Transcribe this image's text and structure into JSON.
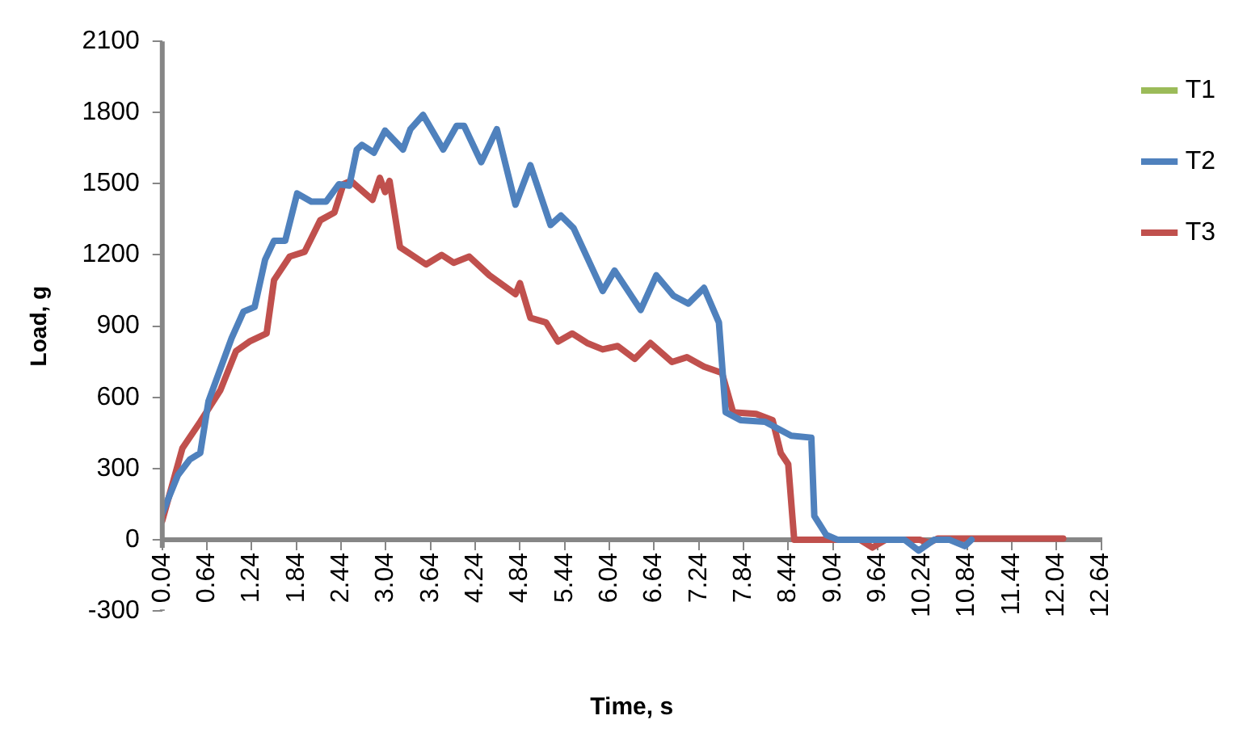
{
  "chart_data": {
    "type": "line",
    "xlabel": "Time, s",
    "ylabel": "Load, g",
    "xlim": [
      0.04,
      12.64
    ],
    "xticks": [
      0.04,
      0.64,
      1.24,
      1.84,
      2.44,
      3.04,
      3.64,
      4.24,
      4.84,
      5.44,
      6.04,
      6.64,
      7.24,
      7.84,
      8.44,
      9.04,
      9.64,
      10.24,
      10.84,
      11.44,
      12.04,
      12.64
    ],
    "ylim": [
      -300,
      2100
    ],
    "yticks": [
      -300,
      0,
      300,
      600,
      900,
      1200,
      1500,
      1800,
      2100
    ],
    "grid": false,
    "legend": "top right",
    "marker": "none",
    "line_style": "solid",
    "series": [
      {
        "name": "T1",
        "color": "#9bbb59"
      },
      {
        "name": "T2",
        "color": "#4f81bd",
        "x": [
          0.04,
          0.25,
          0.41,
          0.55,
          0.66,
          0.97,
          1.13,
          1.28,
          1.42,
          1.54,
          1.69,
          1.85,
          2.04,
          2.24,
          2.41,
          2.55,
          2.65,
          2.72,
          2.88,
          3.03,
          3.27,
          3.37,
          3.54,
          3.81,
          3.99,
          4.09,
          4.32,
          4.53,
          4.78,
          4.98,
          5.25,
          5.39,
          5.56,
          5.95,
          6.11,
          6.46,
          6.67,
          6.9,
          7.1,
          7.31,
          7.51,
          7.6,
          7.8,
          8.13,
          8.48,
          8.75,
          8.79,
          8.95,
          9.1,
          9.6,
          10.0,
          10.19,
          10.4,
          10.6,
          10.81,
          10.9
        ],
        "values": [
          110,
          272,
          338,
          365,
          583,
          849,
          961,
          981,
          1180,
          1260,
          1260,
          1459,
          1425,
          1425,
          1498,
          1492,
          1644,
          1664,
          1631,
          1724,
          1644,
          1730,
          1790,
          1644,
          1744,
          1744,
          1591,
          1730,
          1412,
          1578,
          1326,
          1366,
          1313,
          1048,
          1134,
          968,
          1114,
          1028,
          995,
          1061,
          915,
          537,
          504,
          497,
          438,
          430,
          100,
          20,
          0,
          0,
          0,
          -46,
          0,
          0,
          -27,
          0
        ]
      },
      {
        "name": "T3",
        "color": "#c0504d",
        "x": [
          0.04,
          0.31,
          0.55,
          0.82,
          1.03,
          1.21,
          1.44,
          1.54,
          1.75,
          1.95,
          2.16,
          2.35,
          2.47,
          2.57,
          2.86,
          2.96,
          3.03,
          3.09,
          3.23,
          3.58,
          3.79,
          3.95,
          4.16,
          4.43,
          4.78,
          4.84,
          4.98,
          5.19,
          5.35,
          5.54,
          5.74,
          5.95,
          6.15,
          6.38,
          6.59,
          6.88,
          7.08,
          7.31,
          7.55,
          7.7,
          8.01,
          8.23,
          8.34,
          8.44,
          8.52,
          9.4,
          9.57,
          9.75,
          10.2,
          10.33,
          10.45,
          12.13
        ],
        "values": [
          80,
          385,
          497,
          630,
          795,
          835,
          869,
          1094,
          1193,
          1213,
          1346,
          1379,
          1498,
          1512,
          1432,
          1525,
          1465,
          1512,
          1233,
          1160,
          1200,
          1167,
          1193,
          1114,
          1035,
          1081,
          935,
          915,
          835,
          869,
          829,
          802,
          816,
          762,
          829,
          749,
          769,
          729,
          703,
          537,
          530,
          504,
          365,
          318,
          0,
          0,
          -33,
          0,
          0,
          -13,
          5,
          5
        ]
      }
    ]
  }
}
